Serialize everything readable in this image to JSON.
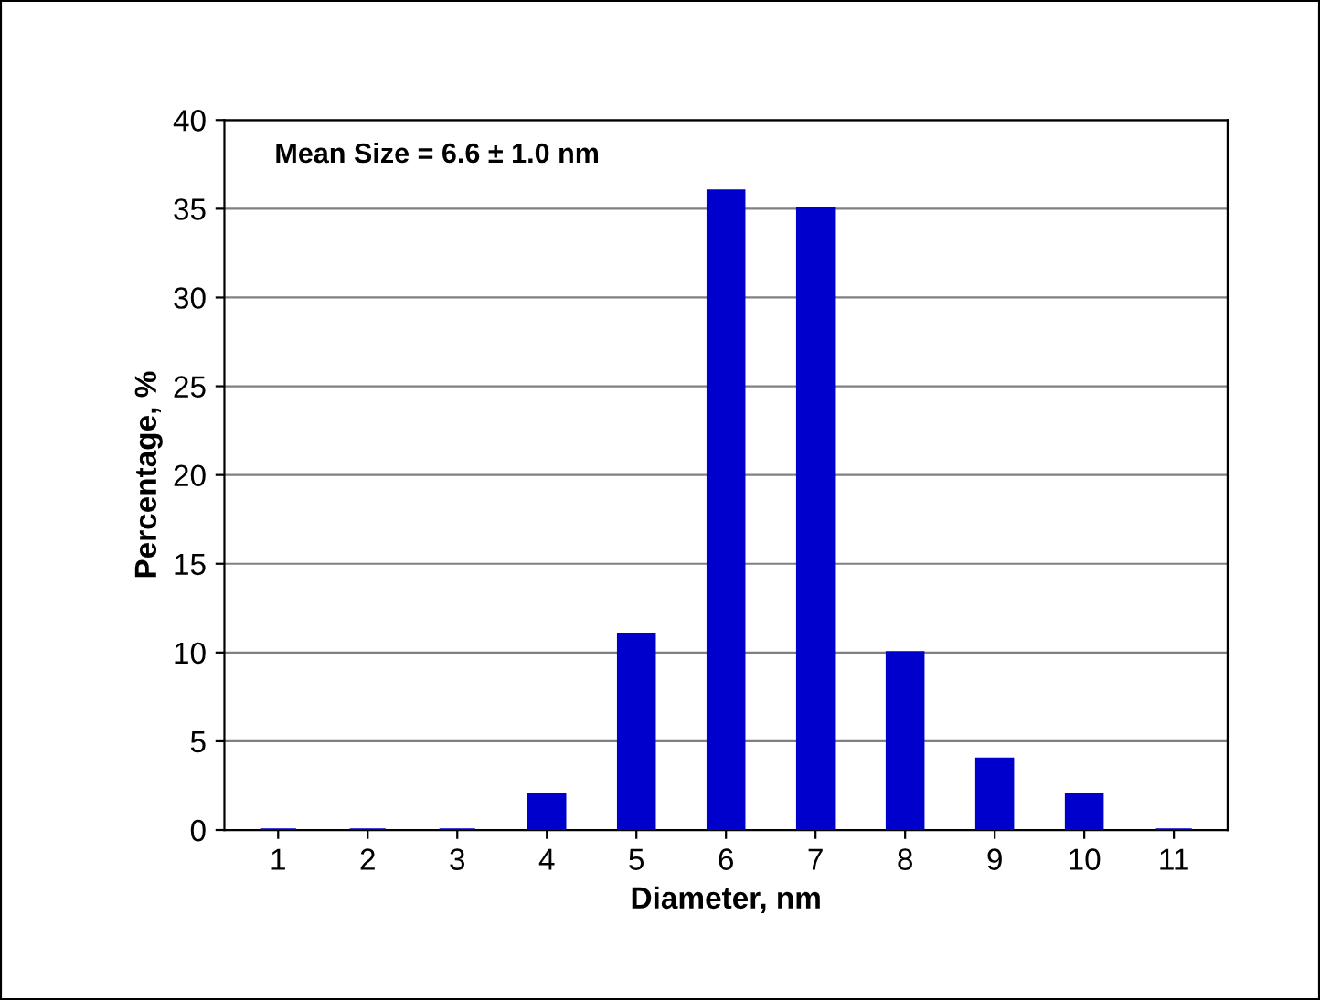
{
  "chart_data": {
    "type": "bar",
    "categories": [
      "1",
      "2",
      "3",
      "4",
      "5",
      "6",
      "7",
      "8",
      "9",
      "10",
      "11"
    ],
    "values": [
      0,
      0,
      0,
      2,
      11,
      36,
      35,
      10,
      4,
      2,
      0
    ],
    "color": "#0000cc",
    "xlabel": "Diameter, nm",
    "ylabel": "Percentage, %",
    "ylim": [
      0,
      40
    ],
    "yticks": [
      0,
      5,
      10,
      15,
      20,
      25,
      30,
      35,
      40
    ],
    "grid": "y",
    "annotations": [
      "Mean Size = 6.6 ± 1.0 nm"
    ]
  }
}
